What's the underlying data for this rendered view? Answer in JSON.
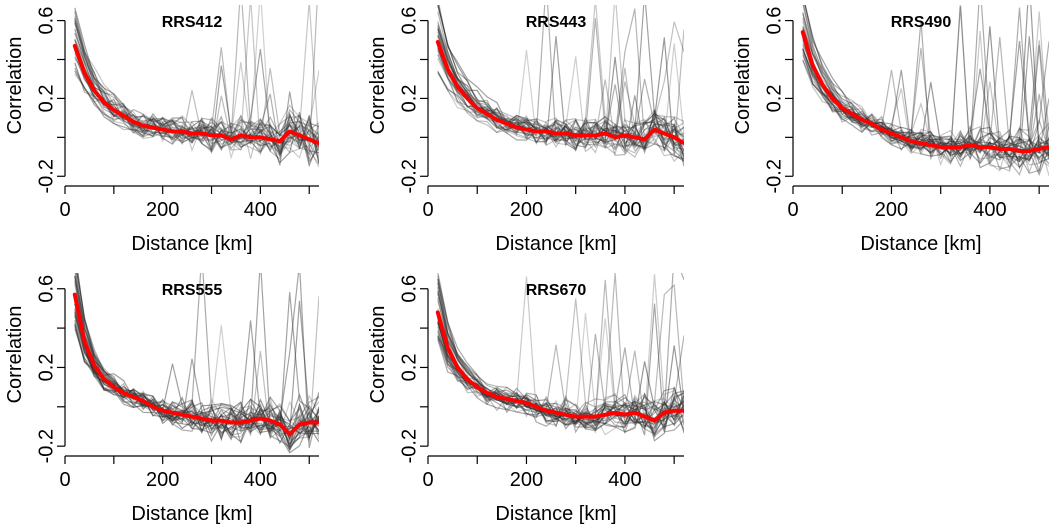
{
  "colors": {
    "mean_line": "#ff0000",
    "individual_lines": "#333333",
    "axis": "#000000",
    "background": "#ffffff"
  },
  "chart_data": [
    {
      "type": "line",
      "title": "RRS412",
      "xlabel": "Distance [km]",
      "ylabel": "Correlation",
      "xlim": [
        0,
        520
      ],
      "ylim": [
        -0.25,
        0.68
      ],
      "xticks": [
        0,
        200,
        400
      ],
      "yticks": [
        -0.2,
        0.2,
        0.6
      ],
      "x": [
        20,
        40,
        60,
        80,
        100,
        120,
        140,
        160,
        180,
        200,
        220,
        240,
        260,
        280,
        300,
        320,
        340,
        360,
        380,
        400,
        420,
        440,
        460,
        480,
        500,
        520
      ],
      "series": [
        {
          "name": "mean",
          "values": [
            0.47,
            0.33,
            0.24,
            0.18,
            0.14,
            0.11,
            0.08,
            0.06,
            0.05,
            0.04,
            0.03,
            0.03,
            0.02,
            0.02,
            0.01,
            0.01,
            -0.01,
            0.01,
            0.0,
            0.0,
            -0.01,
            -0.02,
            0.03,
            0.01,
            -0.01,
            -0.03
          ]
        }
      ]
    },
    {
      "type": "line",
      "title": "RRS443",
      "xlabel": "Distance [km]",
      "ylabel": "Correlation",
      "xlim": [
        0,
        520
      ],
      "ylim": [
        -0.25,
        0.68
      ],
      "xticks": [
        0,
        200,
        400
      ],
      "yticks": [
        -0.2,
        0.2,
        0.6
      ],
      "x": [
        20,
        40,
        60,
        80,
        100,
        120,
        140,
        160,
        180,
        200,
        220,
        240,
        260,
        280,
        300,
        320,
        340,
        360,
        380,
        400,
        420,
        440,
        460,
        480,
        500,
        520
      ],
      "series": [
        {
          "name": "mean",
          "values": [
            0.49,
            0.35,
            0.26,
            0.2,
            0.15,
            0.12,
            0.09,
            0.07,
            0.05,
            0.04,
            0.03,
            0.03,
            0.02,
            0.02,
            0.01,
            0.01,
            0.01,
            0.02,
            0.0,
            0.01,
            0.0,
            -0.01,
            0.04,
            0.02,
            0.0,
            -0.03
          ]
        }
      ]
    },
    {
      "type": "line",
      "title": "RRS490",
      "xlabel": "Distance [km]",
      "ylabel": "Correlation",
      "xlim": [
        0,
        520
      ],
      "ylim": [
        -0.25,
        0.68
      ],
      "xticks": [
        0,
        200,
        400
      ],
      "yticks": [
        -0.2,
        0.2,
        0.6
      ],
      "x": [
        20,
        40,
        60,
        80,
        100,
        120,
        140,
        160,
        180,
        200,
        220,
        240,
        260,
        280,
        300,
        320,
        340,
        360,
        380,
        400,
        420,
        440,
        460,
        480,
        500,
        520
      ],
      "series": [
        {
          "name": "mean",
          "values": [
            0.54,
            0.37,
            0.27,
            0.2,
            0.15,
            0.12,
            0.09,
            0.07,
            0.04,
            0.02,
            0.0,
            -0.02,
            -0.03,
            -0.04,
            -0.05,
            -0.05,
            -0.05,
            -0.04,
            -0.05,
            -0.05,
            -0.06,
            -0.06,
            -0.07,
            -0.07,
            -0.06,
            -0.05
          ]
        }
      ]
    },
    {
      "type": "line",
      "title": "RRS555",
      "xlabel": "Distance [km]",
      "ylabel": "Correlation",
      "xlim": [
        0,
        520
      ],
      "ylim": [
        -0.25,
        0.68
      ],
      "xticks": [
        0,
        200,
        400
      ],
      "yticks": [
        -0.2,
        0.2,
        0.6
      ],
      "x": [
        20,
        40,
        60,
        80,
        100,
        120,
        140,
        160,
        180,
        200,
        220,
        240,
        260,
        280,
        300,
        320,
        340,
        360,
        380,
        400,
        420,
        440,
        460,
        480,
        500,
        520
      ],
      "series": [
        {
          "name": "mean",
          "values": [
            0.57,
            0.33,
            0.21,
            0.14,
            0.1,
            0.07,
            0.05,
            0.03,
            0.0,
            -0.02,
            -0.03,
            -0.04,
            -0.05,
            -0.06,
            -0.07,
            -0.07,
            -0.08,
            -0.08,
            -0.07,
            -0.06,
            -0.07,
            -0.09,
            -0.14,
            -0.09,
            -0.08,
            -0.08
          ]
        }
      ]
    },
    {
      "type": "line",
      "title": "RRS670",
      "xlabel": "Distance [km]",
      "ylabel": "Correlation",
      "xlim": [
        0,
        520
      ],
      "ylim": [
        -0.25,
        0.68
      ],
      "xticks": [
        0,
        200,
        400
      ],
      "yticks": [
        -0.2,
        0.2,
        0.6
      ],
      "x": [
        20,
        40,
        60,
        80,
        100,
        120,
        140,
        160,
        180,
        200,
        220,
        240,
        260,
        280,
        300,
        320,
        340,
        360,
        380,
        400,
        420,
        440,
        460,
        480,
        500,
        520
      ],
      "series": [
        {
          "name": "mean",
          "values": [
            0.48,
            0.3,
            0.2,
            0.14,
            0.1,
            0.07,
            0.05,
            0.04,
            0.03,
            0.02,
            0.0,
            -0.02,
            -0.03,
            -0.04,
            -0.05,
            -0.05,
            -0.05,
            -0.04,
            -0.03,
            -0.04,
            -0.03,
            -0.05,
            -0.07,
            -0.03,
            -0.02,
            -0.02
          ]
        }
      ]
    }
  ]
}
